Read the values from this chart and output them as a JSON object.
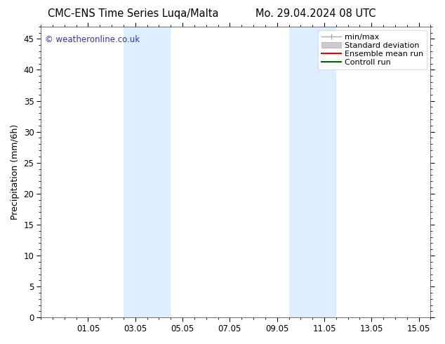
{
  "title_left": "CMC-ENS Time Series Luqa/Malta",
  "title_right": "Mo. 29.04.2024 08 UTC",
  "ylabel": "Precipitation (mm/6h)",
  "ylim": [
    0,
    47
  ],
  "yticks": [
    0,
    5,
    10,
    15,
    20,
    25,
    30,
    35,
    40,
    45
  ],
  "xtick_labels": [
    "01.05",
    "03.05",
    "05.05",
    "07.05",
    "09.05",
    "11.05",
    "13.05",
    "15.05"
  ],
  "xtick_positions": [
    2,
    4,
    6,
    8,
    10,
    12,
    14,
    16
  ],
  "xlim": [
    0,
    16.5
  ],
  "shaded_bands": [
    {
      "xmin": 3.5,
      "xmax": 5.5
    },
    {
      "xmin": 10.5,
      "xmax": 12.5
    }
  ],
  "shade_color": "#ddeeff",
  "background_color": "#ffffff",
  "plot_bg_color": "#ffffff",
  "watermark_text": "© weatheronline.co.uk",
  "watermark_color": "#3333bb",
  "legend_items": [
    {
      "label": "min/max",
      "color": "#aaaaaa",
      "lw": 1.0
    },
    {
      "label": "Standard deviation",
      "color": "#cccccc",
      "lw": 8
    },
    {
      "label": "Ensemble mean run",
      "color": "#ee0000",
      "lw": 1.5
    },
    {
      "label": "Controll run",
      "color": "#006600",
      "lw": 1.5
    }
  ],
  "title_fontsize": 10.5,
  "ylabel_fontsize": 9,
  "tick_fontsize": 8.5,
  "legend_fontsize": 8,
  "watermark_fontsize": 8.5
}
